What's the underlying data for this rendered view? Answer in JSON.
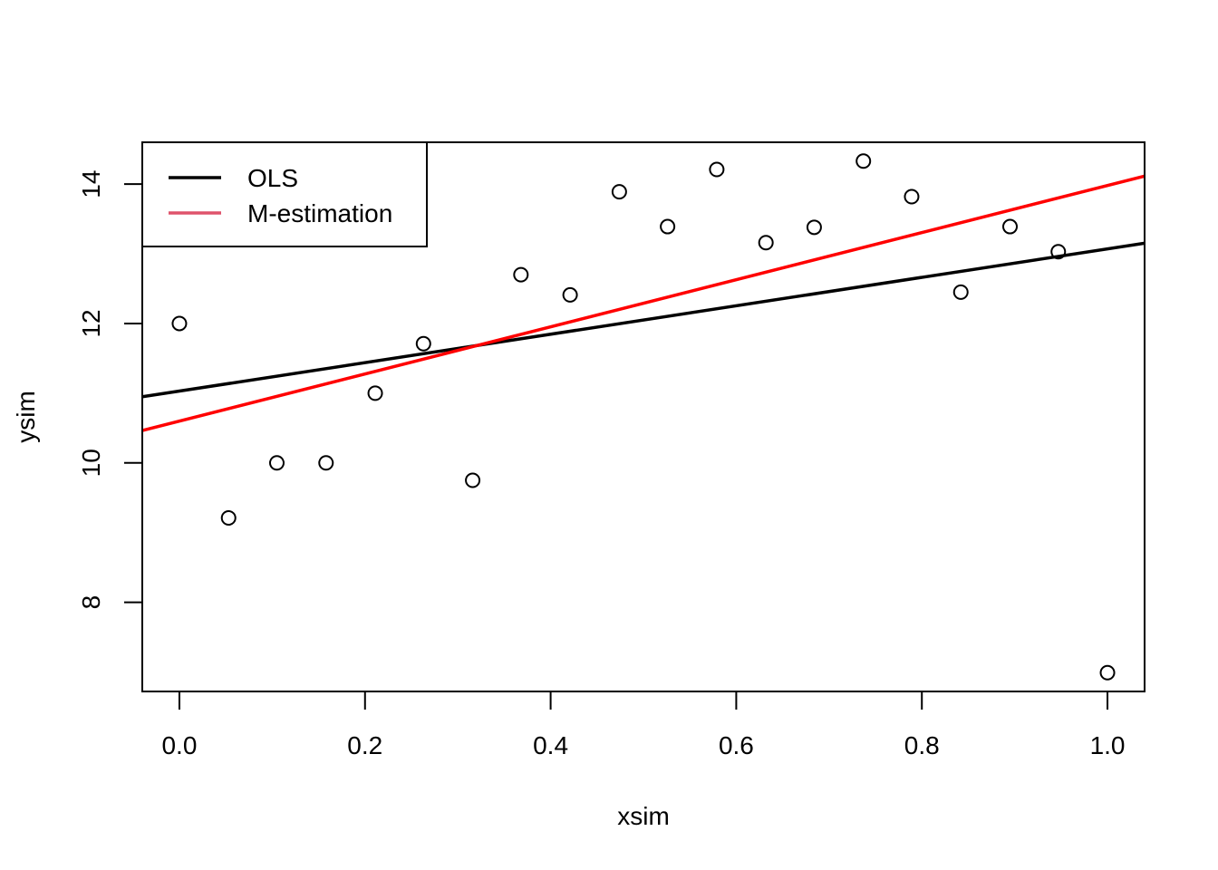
{
  "chart_data": {
    "type": "scatter",
    "xlabel": "xsim",
    "ylabel": "ysim",
    "xlim": [
      -0.04,
      1.04
    ],
    "ylim": [
      6.72,
      14.6
    ],
    "xticks": [
      0.0,
      0.2,
      0.4,
      0.6,
      0.8,
      1.0
    ],
    "xtick_labels": [
      "0.0",
      "0.2",
      "0.4",
      "0.6",
      "0.8",
      "1.0"
    ],
    "yticks": [
      8,
      10,
      12,
      14
    ],
    "ytick_labels": [
      "8",
      "10",
      "12",
      "14"
    ],
    "points": [
      {
        "x": 0.0,
        "y": 12.0
      },
      {
        "x": 0.053,
        "y": 9.21
      },
      {
        "x": 0.105,
        "y": 10.0
      },
      {
        "x": 0.158,
        "y": 10.0
      },
      {
        "x": 0.211,
        "y": 11.0
      },
      {
        "x": 0.263,
        "y": 11.71
      },
      {
        "x": 0.316,
        "y": 9.75
      },
      {
        "x": 0.368,
        "y": 12.7
      },
      {
        "x": 0.421,
        "y": 12.41
      },
      {
        "x": 0.474,
        "y": 13.89
      },
      {
        "x": 0.526,
        "y": 13.39
      },
      {
        "x": 0.579,
        "y": 14.21
      },
      {
        "x": 0.632,
        "y": 13.16
      },
      {
        "x": 0.684,
        "y": 13.38
      },
      {
        "x": 0.737,
        "y": 14.33
      },
      {
        "x": 0.789,
        "y": 13.82
      },
      {
        "x": 0.842,
        "y": 12.45
      },
      {
        "x": 0.895,
        "y": 13.39
      },
      {
        "x": 0.947,
        "y": 13.03
      },
      {
        "x": 1.0,
        "y": 6.99
      }
    ],
    "series": [
      {
        "name": "OLS",
        "type": "line",
        "color": "#000000",
        "intercept": 11.03,
        "slope": 2.04
      },
      {
        "name": "M-estimation",
        "type": "line",
        "color": "#ff0000",
        "legend_color": "#df536b",
        "intercept": 10.6,
        "slope": 3.38
      }
    ],
    "legend": {
      "position": "top-left",
      "entries": [
        "OLS",
        "M-estimation"
      ]
    },
    "grid": false
  }
}
